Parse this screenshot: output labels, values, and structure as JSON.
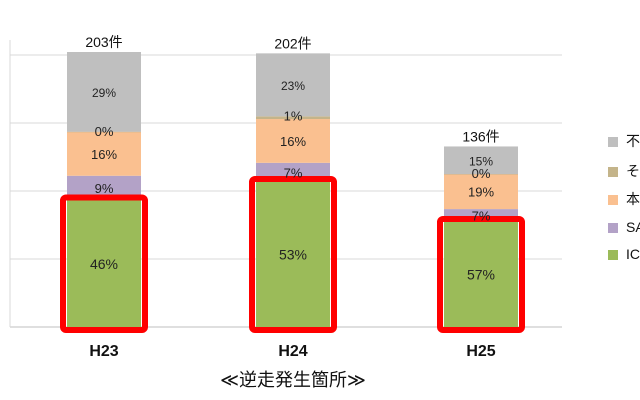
{
  "chart_data": {
    "type": "bar",
    "stacked": true,
    "title": "",
    "xlabel": "≪逆走発生箇所≫",
    "ylabel": "",
    "categories": [
      "H23",
      "H24",
      "H25"
    ],
    "totals": [
      "203件",
      "202件",
      "136件"
    ],
    "ylim": [
      0,
      100
    ],
    "grid": true,
    "legend_position": "right",
    "highlighted_series": "IC",
    "series": [
      {
        "name": "IC",
        "color": "#9bbb59",
        "values": [
          46,
          53,
          57
        ],
        "labels": [
          "46%",
          "53%",
          "57%"
        ]
      },
      {
        "name": "SA",
        "color": "#b3a2c7",
        "values": [
          9,
          7,
          7
        ],
        "labels": [
          "9%",
          "7%",
          "7%"
        ]
      },
      {
        "name": "本",
        "color": "#fac090",
        "values": [
          16,
          16,
          19
        ],
        "labels": [
          "16%",
          "16%",
          "19%"
        ]
      },
      {
        "name": "そ",
        "color": "#c4b48a",
        "values": [
          0,
          1,
          0
        ],
        "labels": [
          "0%",
          "1%",
          "0%"
        ]
      },
      {
        "name": "不",
        "color": "#bfbfbf",
        "values": [
          29,
          23,
          15
        ],
        "labels": [
          "29%",
          "23%",
          "15%"
        ]
      }
    ],
    "legend": [
      {
        "name": "不",
        "color": "#bfbfbf"
      },
      {
        "name": "そ",
        "color": "#c4b48a"
      },
      {
        "name": "本",
        "color": "#fac090"
      },
      {
        "name": "SA",
        "color": "#b3a2c7"
      },
      {
        "name": "IC",
        "color": "#9bbb59"
      }
    ],
    "highlight_color": "#ff0000"
  }
}
